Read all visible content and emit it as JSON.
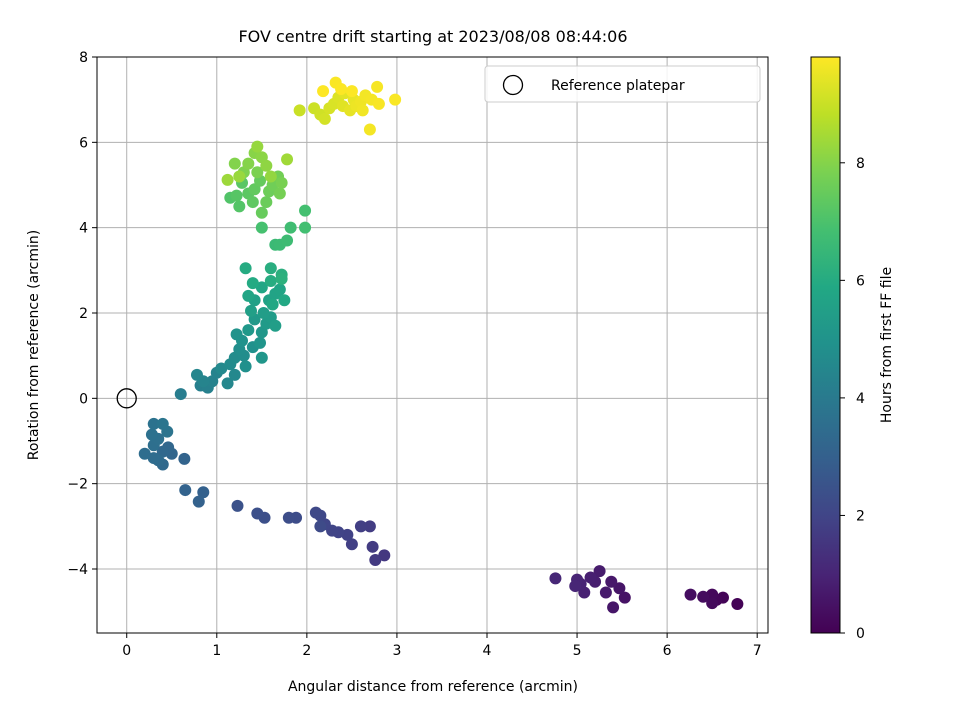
{
  "chart_data": {
    "type": "scatter",
    "title": "FOV centre drift starting at 2023/08/08 08:44:06",
    "xlabel": "Angular distance from reference (arcmin)",
    "ylabel": "Rotation from reference (arcmin)",
    "xlim": [
      -0.33,
      7.12
    ],
    "ylim": [
      -5.5,
      8.0
    ],
    "xticks": [
      0,
      1,
      2,
      3,
      4,
      5,
      6,
      7
    ],
    "yticks": [
      -4,
      -2,
      0,
      2,
      4,
      6,
      8
    ],
    "xtick_labels": [
      "0",
      "1",
      "2",
      "3",
      "4",
      "5",
      "6",
      "7"
    ],
    "ytick_labels": [
      "−4",
      "−2",
      "0",
      "2",
      "4",
      "6",
      "8"
    ],
    "grid": true,
    "legend": {
      "position": "top-right",
      "label": "Reference platepar"
    },
    "reference_point": {
      "x": 0,
      "y": 0
    },
    "colorbar": {
      "label": "Hours from first FF file",
      "colormap": "viridis",
      "range": [
        0,
        9.8
      ],
      "ticks": [
        0,
        2,
        4,
        6,
        8
      ],
      "tick_labels": [
        "0",
        "2",
        "4",
        "6",
        "8"
      ]
    },
    "points": [
      [
        6.78,
        -4.82,
        0.05
      ],
      [
        6.62,
        -4.67,
        0.1
      ],
      [
        6.55,
        -4.72,
        0.15
      ],
      [
        6.5,
        -4.6,
        0.2
      ],
      [
        6.5,
        -4.8,
        0.25
      ],
      [
        6.4,
        -4.65,
        0.3
      ],
      [
        6.26,
        -4.6,
        0.35
      ],
      [
        5.53,
        -4.67,
        0.5
      ],
      [
        5.47,
        -4.45,
        0.55
      ],
      [
        5.4,
        -4.9,
        0.6
      ],
      [
        5.38,
        -4.3,
        0.65
      ],
      [
        5.32,
        -4.55,
        0.7
      ],
      [
        5.25,
        -4.05,
        0.75
      ],
      [
        5.2,
        -4.3,
        0.8
      ],
      [
        5.15,
        -4.2,
        0.85
      ],
      [
        5.08,
        -4.55,
        0.9
      ],
      [
        5.04,
        -4.35,
        0.95
      ],
      [
        5.0,
        -4.25,
        1.0
      ],
      [
        4.98,
        -4.4,
        1.05
      ],
      [
        4.76,
        -4.22,
        1.1
      ],
      [
        2.86,
        -3.68,
        1.6
      ],
      [
        2.76,
        -3.79,
        1.65
      ],
      [
        2.73,
        -3.48,
        1.7
      ],
      [
        2.7,
        -3.0,
        1.75
      ],
      [
        2.6,
        -3.0,
        1.8
      ],
      [
        2.5,
        -3.42,
        1.85
      ],
      [
        2.45,
        -3.2,
        1.9
      ],
      [
        2.35,
        -3.14,
        1.95
      ],
      [
        2.28,
        -3.1,
        2.0
      ],
      [
        2.2,
        -2.95,
        2.05
      ],
      [
        2.15,
        -2.75,
        2.1
      ],
      [
        2.1,
        -2.68,
        2.15
      ],
      [
        2.15,
        -3.0,
        2.2
      ],
      [
        1.88,
        -2.8,
        2.25
      ],
      [
        1.8,
        -2.8,
        2.3
      ],
      [
        1.53,
        -2.8,
        2.35
      ],
      [
        1.45,
        -2.7,
        2.4
      ],
      [
        1.23,
        -2.52,
        2.45
      ],
      [
        0.85,
        -2.2,
        3.0
      ],
      [
        0.8,
        -2.42,
        3.05
      ],
      [
        0.65,
        -2.15,
        3.1
      ],
      [
        0.64,
        -1.42,
        3.15
      ],
      [
        0.5,
        -1.3,
        3.2
      ],
      [
        0.46,
        -1.15,
        3.25
      ],
      [
        0.4,
        -1.25,
        3.3
      ],
      [
        0.4,
        -1.55,
        3.35
      ],
      [
        0.35,
        -1.45,
        3.4
      ],
      [
        0.3,
        -1.4,
        3.45
      ],
      [
        0.2,
        -1.3,
        3.5
      ],
      [
        0.3,
        -1.1,
        3.55
      ],
      [
        0.35,
        -0.95,
        3.6
      ],
      [
        0.28,
        -0.85,
        3.65
      ],
      [
        0.3,
        -0.6,
        3.7
      ],
      [
        0.45,
        -0.78,
        3.75
      ],
      [
        0.4,
        -0.6,
        3.8
      ],
      [
        0.6,
        0.1,
        4.1
      ],
      [
        0.82,
        0.3,
        4.2
      ],
      [
        0.9,
        0.25,
        4.25
      ],
      [
        0.95,
        0.4,
        4.3
      ],
      [
        1.0,
        0.6,
        4.35
      ],
      [
        0.85,
        0.4,
        4.4
      ],
      [
        0.78,
        0.55,
        4.45
      ],
      [
        1.12,
        0.35,
        4.5
      ],
      [
        1.2,
        0.55,
        4.55
      ],
      [
        1.05,
        0.7,
        4.6
      ],
      [
        1.15,
        0.8,
        4.65
      ],
      [
        1.2,
        0.95,
        4.7
      ],
      [
        1.3,
        1.0,
        4.75
      ],
      [
        1.25,
        1.15,
        4.8
      ],
      [
        1.32,
        0.75,
        4.85
      ],
      [
        1.4,
        1.2,
        4.9
      ],
      [
        1.28,
        1.35,
        4.95
      ],
      [
        1.22,
        1.5,
        5.0
      ],
      [
        1.48,
        1.3,
        5.05
      ],
      [
        1.5,
        0.95,
        5.1
      ],
      [
        1.5,
        1.55,
        5.15
      ],
      [
        1.35,
        1.6,
        5.2
      ],
      [
        1.42,
        1.85,
        5.25
      ],
      [
        1.55,
        1.75,
        5.3
      ],
      [
        1.6,
        1.9,
        5.35
      ],
      [
        1.52,
        2.0,
        5.4
      ],
      [
        1.65,
        1.7,
        5.45
      ],
      [
        1.38,
        2.05,
        5.5
      ],
      [
        1.42,
        2.3,
        5.55
      ],
      [
        1.58,
        2.3,
        5.6
      ],
      [
        1.65,
        2.45,
        5.65
      ],
      [
        1.7,
        2.55,
        5.7
      ],
      [
        1.35,
        2.4,
        5.75
      ],
      [
        1.5,
        2.6,
        5.8
      ],
      [
        1.62,
        2.2,
        5.85
      ],
      [
        1.75,
        2.3,
        5.9
      ],
      [
        1.4,
        2.7,
        5.95
      ],
      [
        1.32,
        3.05,
        6.0
      ],
      [
        1.6,
        2.75,
        6.05
      ],
      [
        1.6,
        3.05,
        6.1
      ],
      [
        1.72,
        2.9,
        6.15
      ],
      [
        1.72,
        2.8,
        6.2
      ],
      [
        1.65,
        3.6,
        6.6
      ],
      [
        1.7,
        3.6,
        6.65
      ],
      [
        1.78,
        3.7,
        6.7
      ],
      [
        1.82,
        4.0,
        6.75
      ],
      [
        1.98,
        4.0,
        6.8
      ],
      [
        1.98,
        4.4,
        6.85
      ],
      [
        1.5,
        4.0,
        6.9
      ],
      [
        1.15,
        4.7,
        7.1
      ],
      [
        1.25,
        4.5,
        7.15
      ],
      [
        1.22,
        4.75,
        7.2
      ],
      [
        1.28,
        5.05,
        7.25
      ],
      [
        1.35,
        4.8,
        7.3
      ],
      [
        1.4,
        4.6,
        7.35
      ],
      [
        1.42,
        4.9,
        7.4
      ],
      [
        1.48,
        5.1,
        7.45
      ],
      [
        1.5,
        4.35,
        7.5
      ],
      [
        1.55,
        4.6,
        7.55
      ],
      [
        1.58,
        4.85,
        7.6
      ],
      [
        1.62,
        5.0,
        7.65
      ],
      [
        1.68,
        5.2,
        7.7
      ],
      [
        1.7,
        4.8,
        7.75
      ],
      [
        1.72,
        5.05,
        7.8
      ],
      [
        1.45,
        5.3,
        7.85
      ],
      [
        1.3,
        5.3,
        7.9
      ],
      [
        1.2,
        5.5,
        7.95
      ],
      [
        1.35,
        5.5,
        8.0
      ],
      [
        1.42,
        5.75,
        8.05
      ],
      [
        1.5,
        5.65,
        8.1
      ],
      [
        1.55,
        5.45,
        8.15
      ],
      [
        1.6,
        5.2,
        8.2
      ],
      [
        1.45,
        5.9,
        8.25
      ],
      [
        1.25,
        5.2,
        8.3
      ],
      [
        1.12,
        5.12,
        8.35
      ],
      [
        1.78,
        5.6,
        8.4
      ],
      [
        1.92,
        6.75,
        9.0
      ],
      [
        2.08,
        6.8,
        9.05
      ],
      [
        2.15,
        6.65,
        9.1
      ],
      [
        2.2,
        6.55,
        9.15
      ],
      [
        2.25,
        6.8,
        9.2
      ],
      [
        2.3,
        6.9,
        9.25
      ],
      [
        2.35,
        7.05,
        9.3
      ],
      [
        2.4,
        6.85,
        9.35
      ],
      [
        2.42,
        7.15,
        9.4
      ],
      [
        2.48,
        6.75,
        9.45
      ],
      [
        2.52,
        7.0,
        9.5
      ],
      [
        2.55,
        6.85,
        9.55
      ],
      [
        2.6,
        6.95,
        9.6
      ],
      [
        2.62,
        6.75,
        9.62
      ],
      [
        2.65,
        7.1,
        9.64
      ],
      [
        2.7,
        6.3,
        9.66
      ],
      [
        2.72,
        7.0,
        9.68
      ],
      [
        2.78,
        7.3,
        9.7
      ],
      [
        2.8,
        6.9,
        9.72
      ],
      [
        2.98,
        7.0,
        9.74
      ],
      [
        2.32,
        7.4,
        9.76
      ],
      [
        2.38,
        7.25,
        9.78
      ],
      [
        2.5,
        7.2,
        9.79
      ],
      [
        2.18,
        7.2,
        9.8
      ]
    ]
  }
}
